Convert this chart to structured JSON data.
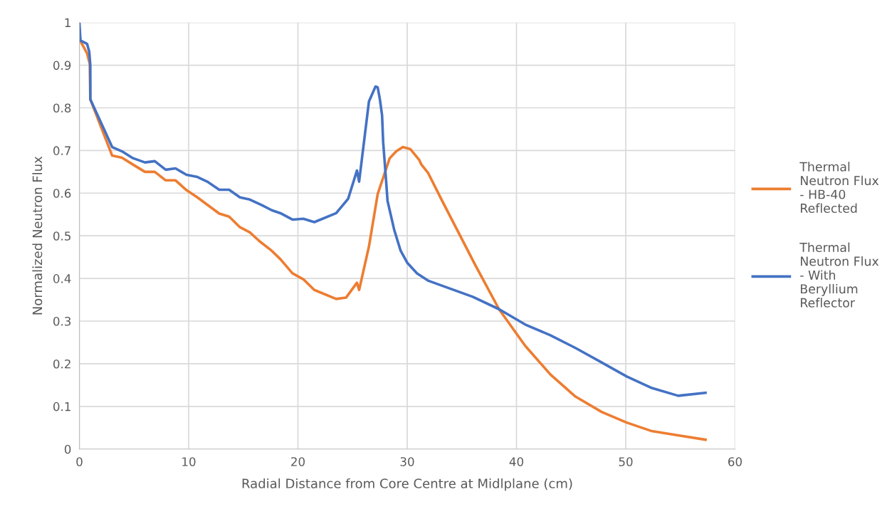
{
  "chart_data": {
    "type": "line",
    "xlabel": "Radial Distance from Core Centre at Midlplane (cm)",
    "ylabel": "Normalized Neutron Flux",
    "xlim": [
      0,
      60
    ],
    "xticks": [
      0,
      10,
      20,
      30,
      40,
      50,
      60
    ],
    "ylim": [
      0,
      1
    ],
    "yticks": [
      0,
      0.1,
      0.2,
      0.3,
      0.4,
      0.5,
      0.6,
      0.7,
      0.8,
      0.9,
      1
    ],
    "grid": true,
    "legend": "right",
    "marker": "none",
    "line_style": "solid",
    "series": [
      {
        "name": "Thermal Neutron Flux - HB-40 Reflected",
        "color": "#ed7d31",
        "x": [
          0.06,
          0.4,
          0.7,
          0.95,
          1.0,
          3.0,
          3.9,
          4.9,
          6.0,
          6.9,
          7.9,
          8.8,
          9.8,
          10.8,
          11.7,
          12.8,
          13.7,
          14.7,
          15.6,
          16.5,
          17.6,
          18.4,
          19.5,
          20.5,
          21.5,
          23.5,
          24.4,
          25.4,
          25.6,
          26.5,
          27.3,
          28.4,
          29.0,
          29.6,
          30.3,
          31.1,
          31.3,
          31.9,
          33.2,
          36.2,
          38.4,
          40.8,
          43.1,
          45.4,
          47.8,
          50.1,
          52.4,
          54.8,
          57.3
        ],
        "values": [
          0.958,
          0.942,
          0.928,
          0.903,
          0.82,
          0.688,
          0.683,
          0.667,
          0.65,
          0.65,
          0.63,
          0.63,
          0.607,
          0.59,
          0.573,
          0.552,
          0.545,
          0.52,
          0.508,
          0.487,
          0.465,
          0.445,
          0.412,
          0.398,
          0.373,
          0.352,
          0.355,
          0.39,
          0.373,
          0.475,
          0.598,
          0.682,
          0.698,
          0.708,
          0.703,
          0.678,
          0.667,
          0.648,
          0.582,
          0.433,
          0.328,
          0.242,
          0.175,
          0.123,
          0.087,
          0.062,
          0.042,
          0.032,
          0.022
        ]
      },
      {
        "name": "Thermal Neutron Flux - With Beryllium Reflector",
        "color": "#4472c4",
        "x": [
          0.0,
          0.1,
          0.7,
          0.9,
          1.0,
          1.0,
          3.0,
          3.9,
          4.9,
          6.0,
          6.9,
          7.9,
          8.8,
          9.8,
          10.8,
          11.7,
          12.8,
          13.7,
          14.7,
          15.6,
          16.7,
          17.6,
          18.4,
          19.5,
          20.5,
          21.5,
          23.5,
          24.6,
          25.4,
          25.6,
          26.5,
          27.1,
          27.3,
          27.5,
          27.7,
          27.8,
          28.0,
          28.2,
          28.8,
          29.4,
          30.0,
          30.9,
          31.9,
          36.0,
          38.4,
          40.8,
          43.1,
          45.4,
          47.8,
          50.1,
          52.4,
          54.8,
          57.3
        ],
        "values": [
          1.0,
          0.958,
          0.95,
          0.932,
          0.9,
          0.82,
          0.708,
          0.698,
          0.682,
          0.672,
          0.675,
          0.655,
          0.658,
          0.643,
          0.638,
          0.627,
          0.608,
          0.608,
          0.59,
          0.585,
          0.572,
          0.56,
          0.553,
          0.538,
          0.54,
          0.532,
          0.553,
          0.587,
          0.653,
          0.627,
          0.815,
          0.85,
          0.848,
          0.82,
          0.783,
          0.72,
          0.653,
          0.582,
          0.515,
          0.465,
          0.437,
          0.412,
          0.395,
          0.357,
          0.328,
          0.292,
          0.267,
          0.237,
          0.203,
          0.17,
          0.143,
          0.125,
          0.132
        ]
      }
    ]
  }
}
